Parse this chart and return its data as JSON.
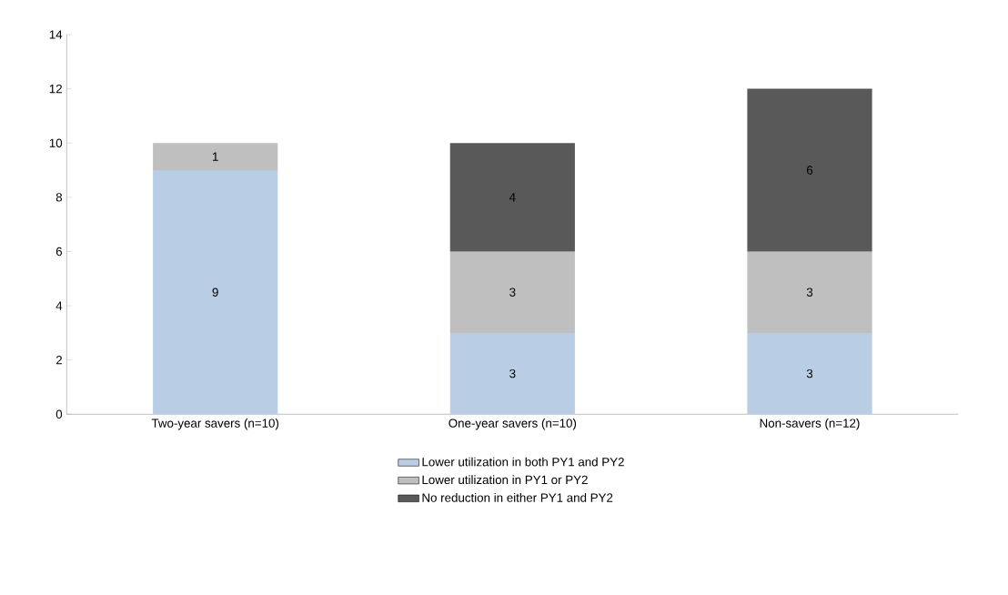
{
  "chart_data": {
    "type": "bar",
    "stacked": true,
    "categories": [
      "Two-year savers (n=10)",
      "One-year savers (n=10)",
      "Non-savers (n=12)"
    ],
    "series": [
      {
        "name": "Lower utilization in both PY1 and PY2",
        "color": "#b9cde5",
        "values": [
          9,
          3,
          3
        ]
      },
      {
        "name": "Lower utilization in PY1 or PY2",
        "color": "#bfbfbf",
        "values": [
          1,
          3,
          3
        ]
      },
      {
        "name": "No reduction in either PY1 and PY2",
        "color": "#595959",
        "values": [
          null,
          4,
          6
        ]
      }
    ],
    "ylim": [
      0,
      14
    ],
    "yticks": [
      0,
      2,
      4,
      6,
      8,
      10,
      12,
      14
    ],
    "data_labels": true,
    "grid": false,
    "legend": "bottom"
  }
}
